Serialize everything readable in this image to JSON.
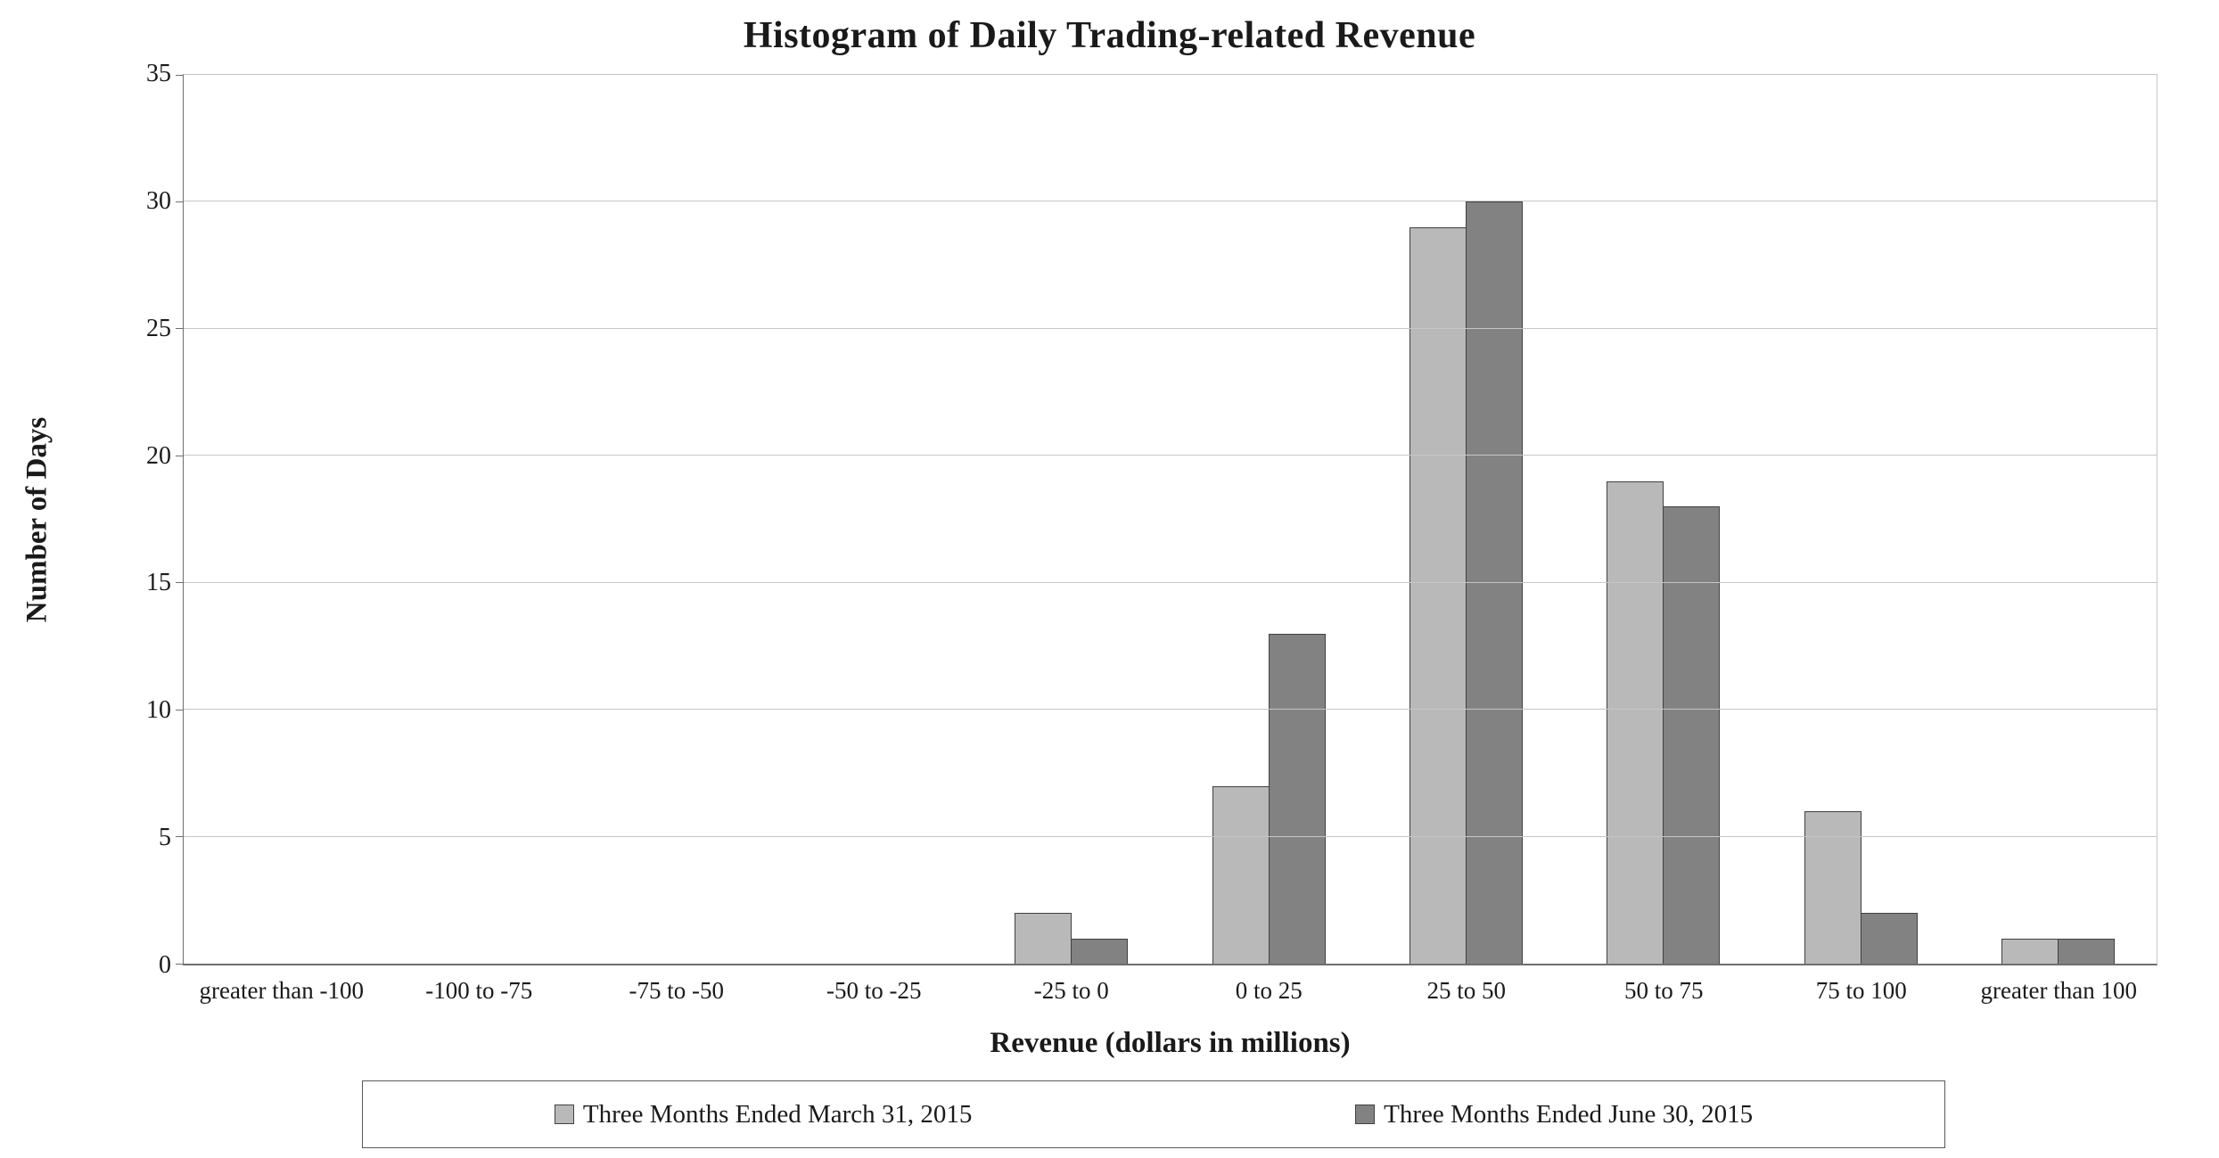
{
  "chart_data": {
    "type": "bar",
    "title": "Histogram of Daily Trading-related Revenue",
    "xlabel": "Revenue (dollars in millions)",
    "ylabel": "Number of Days",
    "ylim": [
      0,
      35
    ],
    "ytick_step": 5,
    "grid": true,
    "legend_position": "bottom",
    "categories": [
      "greater than -100",
      "-100 to -75",
      "-75 to -50",
      "-50 to -25",
      "-25 to 0",
      "0 to 25",
      "25 to 50",
      "50 to 75",
      "75 to 100",
      "greater than 100"
    ],
    "series": [
      {
        "name": "Three Months Ended March 31, 2015",
        "color": "#b9b9b9",
        "values": [
          0,
          0,
          0,
          0,
          2,
          7,
          29,
          19,
          6,
          1
        ]
      },
      {
        "name": "Three Months Ended June 30, 2015",
        "color": "#828282",
        "values": [
          0,
          0,
          0,
          0,
          1,
          13,
          30,
          18,
          2,
          1
        ]
      }
    ]
  }
}
